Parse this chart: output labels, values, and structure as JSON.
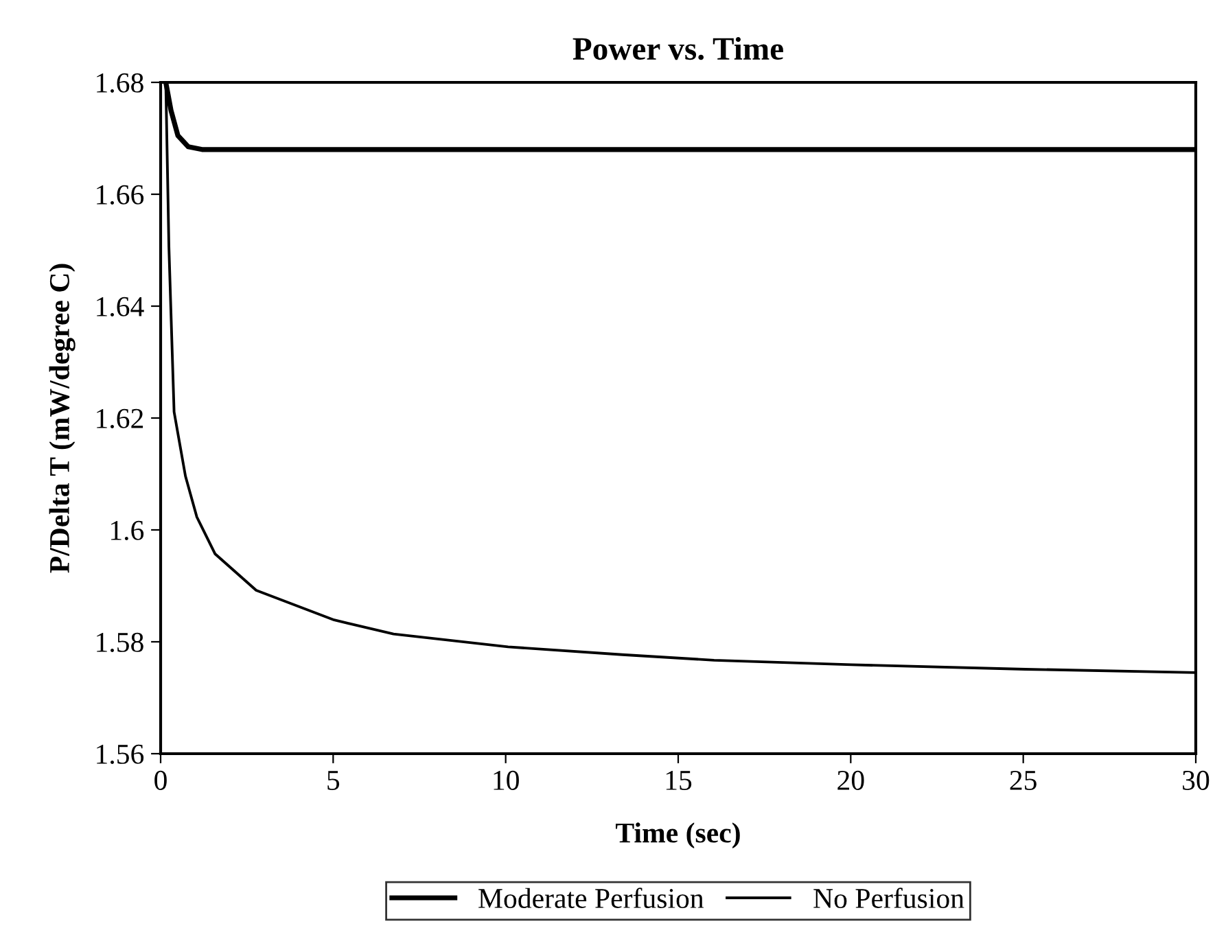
{
  "chart_data": {
    "type": "line",
    "title": "Power vs. Time",
    "xlabel": "Time (sec)",
    "ylabel": "P/Delta T (mW/degree C)",
    "xlim": [
      0,
      30
    ],
    "ylim": [
      1.56,
      1.68
    ],
    "xticks": [
      0,
      5,
      10,
      15,
      20,
      25,
      30
    ],
    "yticks": [
      1.56,
      1.58,
      1.6,
      1.62,
      1.64,
      1.66,
      1.68
    ],
    "grid": false,
    "legend": "bottom",
    "marker": "none",
    "line_style": "solid",
    "series": [
      {
        "name": "Moderate Perfusion",
        "color": "#000000",
        "x": [
          0.15,
          0.3,
          0.5,
          0.8,
          1.2,
          5,
          10,
          20,
          30
        ],
        "values": [
          1.68,
          1.675,
          1.6705,
          1.6685,
          1.668,
          1.668,
          1.668,
          1.668,
          1.668
        ]
      },
      {
        "name": "No Perfusion",
        "color": "#000000",
        "x": [
          0.15,
          0.24,
          0.39,
          0.72,
          1.05,
          1.58,
          2.77,
          5.03,
          6.75,
          10.07,
          13.38,
          16.04,
          20.02,
          25.06,
          29.96
        ],
        "values": [
          1.68,
          1.6506,
          1.6211,
          1.6096,
          1.6023,
          1.5957,
          1.5892,
          1.5839,
          1.5814,
          1.5791,
          1.5777,
          1.5767,
          1.5759,
          1.5751,
          1.5745
        ]
      }
    ]
  }
}
